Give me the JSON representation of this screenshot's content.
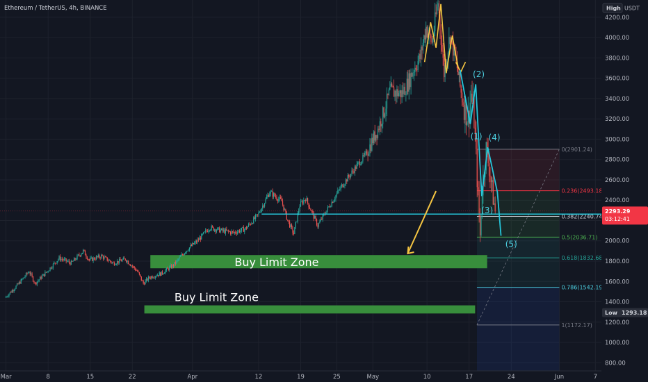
{
  "header": {
    "title": "Ethereum / TetherUS, 4h, BINANCE",
    "currency": "USDT",
    "scale_mode_label": "High"
  },
  "chart_data": {
    "type": "candlestick",
    "title": "Ethereum / TetherUS, 4h, BINANCE",
    "ylim": [
      720,
      4370
    ],
    "y_ticks": [
      800,
      1000,
      1200,
      1400,
      1600,
      1800,
      2000,
      2200,
      2400,
      2600,
      2800,
      3000,
      3200,
      3400,
      3600,
      3800,
      4000,
      4200
    ],
    "y_tick_labels": [
      "800.00",
      "1000.00",
      "1200.00",
      "1400.00",
      "1600.00",
      "1800.00",
      "2000.00",
      "2200.00",
      "2400.00",
      "2600.00",
      "2800.00",
      "3000.00",
      "3200.00",
      "3400.00",
      "3600.00",
      "3800.00",
      "4000.00",
      "4200.00"
    ],
    "x_range_days": [
      -1,
      99
    ],
    "x_ticks": [
      {
        "label": "Mar",
        "day": 0
      },
      {
        "label": "8",
        "day": 7
      },
      {
        "label": "15",
        "day": 14
      },
      {
        "label": "22",
        "day": 21
      },
      {
        "label": "Apr",
        "day": 31
      },
      {
        "label": "12",
        "day": 42
      },
      {
        "label": "19",
        "day": 49
      },
      {
        "label": "25",
        "day": 55
      },
      {
        "label": "May",
        "day": 61
      },
      {
        "label": "10",
        "day": 70
      },
      {
        "label": "17",
        "day": 77
      },
      {
        "label": "24",
        "day": 84
      },
      {
        "label": "Jun",
        "day": 92
      },
      {
        "label": "7",
        "day": 98
      }
    ],
    "price_path": [
      [
        0,
        1440
      ],
      [
        2,
        1560
      ],
      [
        4,
        1700
      ],
      [
        5,
        1580
      ],
      [
        7,
        1700
      ],
      [
        9,
        1830
      ],
      [
        11,
        1780
      ],
      [
        13,
        1900
      ],
      [
        14,
        1810
      ],
      [
        16,
        1850
      ],
      [
        18,
        1780
      ],
      [
        20,
        1820
      ],
      [
        22,
        1700
      ],
      [
        23,
        1580
      ],
      [
        24,
        1640
      ],
      [
        26,
        1680
      ],
      [
        28,
        1760
      ],
      [
        30,
        1900
      ],
      [
        32,
        2000
      ],
      [
        34,
        2130
      ],
      [
        36,
        2100
      ],
      [
        38,
        2080
      ],
      [
        40,
        2120
      ],
      [
        42,
        2250
      ],
      [
        44,
        2480
      ],
      [
        46,
        2390
      ],
      [
        47,
        2200
      ],
      [
        48,
        2070
      ],
      [
        49,
        2350
      ],
      [
        50,
        2420
      ],
      [
        52,
        2150
      ],
      [
        54,
        2350
      ],
      [
        56,
        2540
      ],
      [
        58,
        2700
      ],
      [
        60,
        2850
      ],
      [
        62,
        3100
      ],
      [
        63,
        3270
      ],
      [
        64,
        3470
      ],
      [
        66,
        3450
      ],
      [
        67,
        3550
      ],
      [
        68,
        3700
      ],
      [
        69,
        3800
      ],
      [
        70,
        4100
      ],
      [
        71,
        3950
      ],
      [
        72,
        4350
      ],
      [
        73,
        3650
      ],
      [
        74,
        4030
      ],
      [
        75,
        3760
      ],
      [
        76,
        3400
      ],
      [
        77,
        3200
      ],
      [
        77.5,
        3450
      ],
      [
        78,
        3200
      ],
      [
        78.6,
        2500
      ],
      [
        79,
        2050
      ],
      [
        79.3,
        2500
      ],
      [
        80,
        2900
      ],
      [
        80.6,
        2700
      ],
      [
        81,
        2500
      ],
      [
        81.5,
        2290
      ]
    ],
    "current_price": "2293.29",
    "countdown": "03:12:41",
    "low_label": "Low",
    "low_value": "1293.18",
    "horizontal_line": 2263,
    "fibonacci": {
      "day_start": 78.3,
      "day_end": 92,
      "levels": [
        {
          "ratio": "0",
          "price": 2901.24,
          "label": "0(2901.24)",
          "color": "#787b86"
        },
        {
          "ratio": "0.236",
          "price": 2493.18,
          "label": "0.236(2493.18)",
          "color": "#f23645"
        },
        {
          "ratio": "0.382",
          "price": 2240.74,
          "label": "0.382(2240.74)",
          "color": "#d1d4dc"
        },
        {
          "ratio": "0.5",
          "price": 2036.71,
          "label": "0.5(2036.71)",
          "color": "#4caf50"
        },
        {
          "ratio": "0.618",
          "price": 1832.68,
          "label": "0.618(1832.68)",
          "color": "#26a69a"
        },
        {
          "ratio": "0.786",
          "price": 1542.19,
          "label": "0.786(1542.19)",
          "color": "#4dd0e1"
        },
        {
          "ratio": "1",
          "price": 1172.17,
          "label": "1(1172.17)",
          "color": "#787b86"
        }
      ]
    },
    "zones": [
      {
        "label": "Buy Limit Zone",
        "top": 1860,
        "bottom": 1730,
        "day_start": 24,
        "day_end": 80
      },
      {
        "label": "Buy Limit Zone",
        "top": 1365,
        "bottom": 1285,
        "day_start": 23,
        "day_end": 78
      }
    ],
    "waves": [
      {
        "label": "(1)",
        "day": 78.2,
        "price": 3000
      },
      {
        "label": "(2)",
        "day": 78.6,
        "price": 3610
      },
      {
        "label": "(3)",
        "day": 80,
        "price": 2270
      },
      {
        "label": "(4)",
        "day": 81.2,
        "price": 2990
      },
      {
        "label": "(5)",
        "day": 84,
        "price": 1940
      }
    ]
  }
}
